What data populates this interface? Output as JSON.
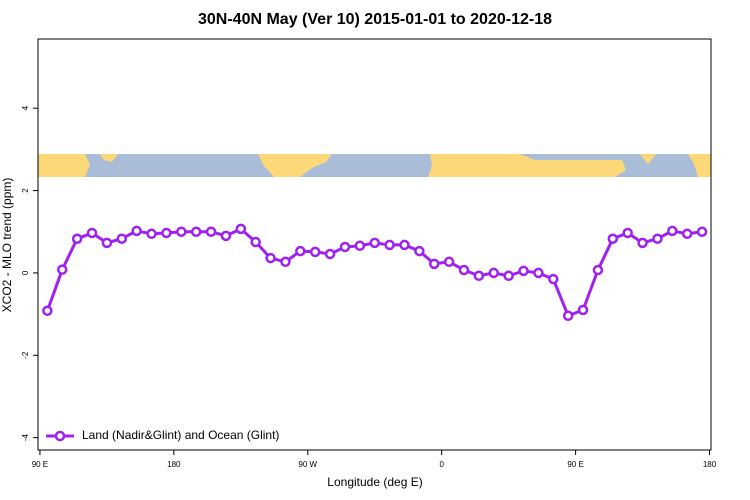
{
  "chart_data": {
    "type": "line",
    "title": "30N-40N May (Ver 10)   2015-01-01 to 2020-12-18",
    "x_label": "Longitude (deg E)",
    "y_label": "XCO2 - MLO trend (ppm)",
    "x": [
      95,
      105,
      115,
      125,
      135,
      145,
      155,
      165,
      175,
      185,
      195,
      205,
      215,
      225,
      235,
      245,
      255,
      265,
      275,
      285,
      295,
      305,
      315,
      325,
      335,
      345,
      355,
      365,
      375,
      385,
      395,
      405,
      415,
      425,
      435,
      445,
      455,
      465,
      475,
      485,
      495,
      505,
      515,
      525,
      535
    ],
    "series": [
      {
        "name": "Land (Nadir&Glint) and Ocean (Glint)",
        "color": "#a020f0",
        "values": [
          -0.92,
          0.08,
          0.83,
          0.97,
          0.73,
          0.83,
          1.02,
          0.95,
          0.97,
          1.0,
          1.0,
          1.0,
          0.9,
          1.07,
          0.75,
          0.36,
          0.27,
          0.53,
          0.51,
          0.46,
          0.63,
          0.66,
          0.73,
          0.68,
          0.68,
          0.53,
          0.22,
          0.27,
          0.07,
          -0.07,
          0,
          -0.07,
          0.05,
          0,
          -0.15,
          -1.04,
          -0.9,
          0.07,
          0.83,
          0.97,
          0.73,
          0.83,
          1.02,
          0.95,
          1.0
        ]
      }
    ],
    "xlim": [
      88.7,
      541
    ],
    "ylim": [
      -4.3,
      5.68
    ],
    "xticks": [
      {
        "value": 90,
        "label": "90 E"
      },
      180,
      {
        "value": 270,
        "label": "90 W"
      },
      {
        "value": 360,
        "label": "0"
      },
      {
        "value": 450,
        "label": "90 E"
      },
      {
        "value": 540,
        "label": "180"
      }
    ],
    "yticks": [
      -4,
      -2,
      0,
      2,
      4
    ],
    "legend": "bottom-left"
  }
}
